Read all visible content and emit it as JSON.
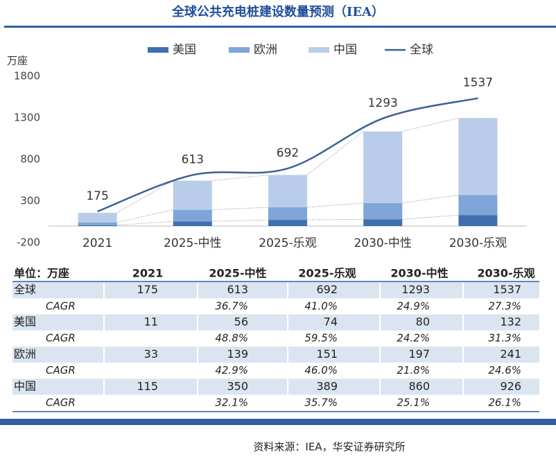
{
  "chart_data": {
    "type": "bar",
    "stacked": true,
    "title": "全球公共充电桩建设数量预测（IEA）",
    "y_label": "万座",
    "categories": [
      "2021",
      "2025-中性",
      "2025-乐观",
      "2030-中性",
      "2030-乐观"
    ],
    "series": [
      {
        "name": "美国",
        "color": "#3f6fae",
        "values": [
          11,
          56,
          74,
          80,
          132
        ]
      },
      {
        "name": "欧洲",
        "color": "#7fa4d7",
        "values": [
          33,
          139,
          151,
          197,
          241
        ]
      },
      {
        "name": "中国",
        "color": "#b9cdea",
        "values": [
          115,
          350,
          389,
          860,
          926
        ]
      },
      {
        "name": "全球",
        "color": "#3a6096",
        "type": "line",
        "values": [
          175,
          613,
          692,
          1293,
          1537
        ],
        "labels": true
      }
    ],
    "ylim": [
      -200,
      1800
    ],
    "yticks": [
      -200,
      300,
      800,
      1300,
      1800
    ],
    "grid": false
  },
  "table": {
    "header": [
      "单位：万座",
      "2021",
      "2025-中性",
      "2025-乐观",
      "2030-中性",
      "2030-乐观"
    ],
    "rows": [
      {
        "label": "全球",
        "values": [
          "175",
          "613",
          "692",
          "1293",
          "1537"
        ]
      },
      {
        "label": "CAGR",
        "values": [
          "36.7%",
          "41.0%",
          "24.9%",
          "27.3%"
        ]
      },
      {
        "label": "美国",
        "values": [
          "11",
          "56",
          "74",
          "80",
          "132"
        ]
      },
      {
        "label": "CAGR",
        "values": [
          "48.8%",
          "59.5%",
          "24.2%",
          "31.3%"
        ]
      },
      {
        "label": "欧洲",
        "values": [
          "33",
          "139",
          "151",
          "197",
          "241"
        ]
      },
      {
        "label": "CAGR",
        "values": [
          "42.9%",
          "46.0%",
          "21.8%",
          "24.6%"
        ]
      },
      {
        "label": "中国",
        "values": [
          "115",
          "350",
          "389",
          "860",
          "926"
        ]
      },
      {
        "label": "CAGR",
        "values": [
          "32.1%",
          "35.7%",
          "25.1%",
          "26.1%"
        ]
      }
    ]
  },
  "source": "资料来源：IEA，华安证券研究所"
}
